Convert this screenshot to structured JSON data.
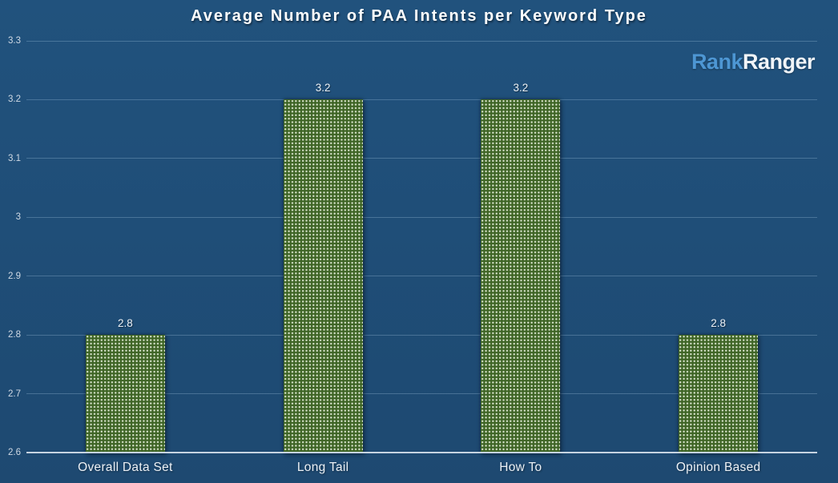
{
  "title": "Average Number of PAA Intents per Keyword Type",
  "logo": {
    "part1": "Rank",
    "part2": "Ranger"
  },
  "colors": {
    "background": "#1F4E79",
    "gridline": "rgba(140,175,205,0.38)",
    "baseline": "#C6D4E1",
    "bar_fill": "#3F6526",
    "bar_dot": "#DCE7D0",
    "tick_text": "#CFD9E4",
    "label_text": "#ECF1F6",
    "title_text": "#FDFEFE",
    "logo_blue": "#4D96D3",
    "logo_white": "#F0F4F8"
  },
  "chart_data": {
    "type": "bar",
    "title": "Average Number of PAA Intents per Keyword Type",
    "categories": [
      "Overall Data Set",
      "Long Tail",
      "How To",
      "Opinion Based"
    ],
    "values": [
      2.8,
      3.2,
      3.2,
      2.8
    ],
    "data_labels": [
      "2.8",
      "3.2",
      "3.2",
      "2.8"
    ],
    "xlabel": "",
    "ylabel": "",
    "ylim": [
      2.6,
      3.3
    ],
    "ytick_values": [
      2.6,
      2.7,
      2.8,
      2.9,
      3.0,
      3.1,
      3.2,
      3.3
    ],
    "ytick_labels": [
      "2.6",
      "2.7",
      "2.8",
      "2.9",
      "3",
      "3.1",
      "3.2",
      "3.3"
    ],
    "grid": true,
    "legend": false,
    "bar_pattern": "dotted",
    "data_label_position": "above-bar"
  }
}
